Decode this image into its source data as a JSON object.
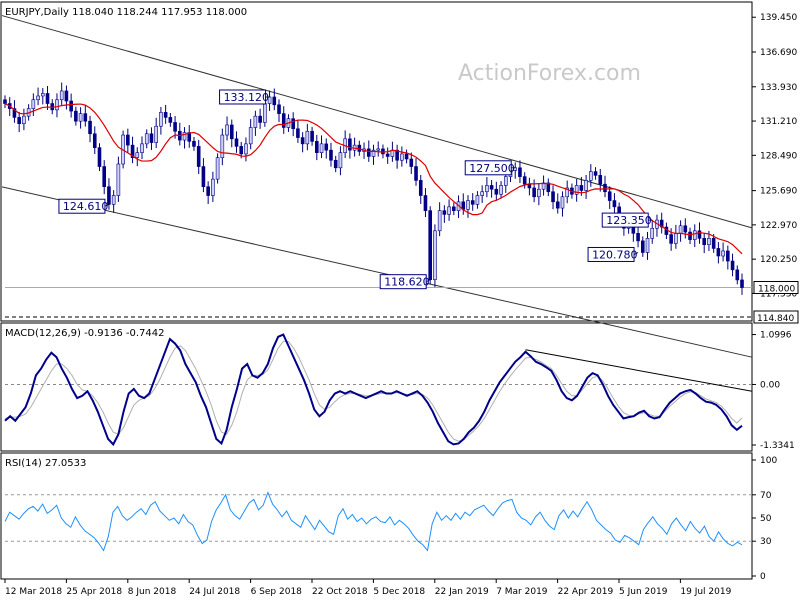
{
  "chart_data": {
    "type": "candlestick",
    "symbol_header": "EURJPY,Daily  118.040 118.244 117.953 118.000",
    "watermark": "ActionForex.com",
    "x_labels": [
      "12 Mar 2018",
      "25 Apr 2018",
      "8 Jun 2018",
      "24 Jul 2018",
      "6 Sep 2018",
      "22 Oct 2018",
      "5 Dec 2018",
      "22 Jan 2019",
      "7 Mar 2019",
      "22 Apr 2019",
      "5 Jun 2019",
      "19 Jul 2019"
    ],
    "price_panel": {
      "y_ticks": [
        "139.450",
        "136.690",
        "133.930",
        "131.210",
        "128.490",
        "125.690",
        "122.970",
        "120.250",
        "117.530"
      ],
      "y_range": [
        115.5,
        140.5
      ],
      "last_price": "118.000",
      "support_level": "114.840",
      "moving_average_color": "#e00000",
      "candle_up_color": "#d0d0ff",
      "candle_down_color": "#00008b",
      "closes": [
        132.6,
        132.2,
        131.5,
        131.0,
        131.6,
        132.2,
        132.9,
        133.2,
        133.4,
        132.6,
        132.1,
        132.9,
        133.6,
        132.8,
        132.0,
        131.2,
        131.8,
        131.2,
        130.2,
        129.1,
        127.6,
        126.0,
        124.6,
        125.3,
        127.8,
        130.1,
        129.3,
        128.3,
        128.7,
        129.4,
        130.2,
        129.5,
        130.8,
        131.9,
        131.5,
        131.1,
        130.4,
        129.7,
        130.3,
        129.6,
        129.2,
        127.6,
        126.0,
        125.3,
        126.6,
        128.3,
        130.1,
        130.9,
        129.8,
        129.2,
        128.6,
        129.4,
        130.7,
        131.6,
        131.1,
        132.6,
        133.12,
        132.5,
        131.8,
        130.7,
        131.4,
        130.6,
        129.9,
        129.4,
        130.4,
        129.6,
        128.7,
        129.4,
        128.9,
        128.1,
        127.5,
        128.7,
        129.8,
        128.9,
        129.3,
        128.8,
        129.0,
        128.4,
        128.9,
        129.0,
        128.6,
        128.4,
        128.9,
        128.1,
        128.6,
        128.2,
        127.6,
        126.5,
        125.3,
        124.1,
        118.62,
        122.5,
        124.1,
        123.8,
        124.4,
        124.1,
        124.8,
        124.2,
        124.9,
        124.6,
        125.3,
        125.6,
        126.1,
        125.8,
        125.4,
        126.1,
        126.8,
        127.3,
        127.5,
        126.8,
        126.2,
        125.9,
        125.2,
        125.8,
        126.3,
        125.6,
        124.8,
        124.3,
        125.2,
        125.9,
        125.4,
        126.1,
        125.7,
        126.5,
        127.2,
        126.9,
        126.2,
        125.6,
        124.9,
        124.4,
        123.3,
        122.7,
        123.2,
        122.3,
        121.7,
        120.78,
        121.9,
        122.7,
        123.35,
        122.8,
        122.2,
        121.5,
        122.3,
        122.9,
        122.4,
        121.8,
        122.5,
        121.9,
        121.4,
        121.9,
        121.1,
        120.5,
        120.9,
        120.1,
        119.4,
        118.6,
        118.0
      ],
      "annotations": [
        {
          "label": "133.120",
          "index": 56
        },
        {
          "label": "124.610",
          "index": 22
        },
        {
          "label": "127.500",
          "index": 108
        },
        {
          "label": "118.620",
          "index": 90
        },
        {
          "label": "123.350",
          "index": 137
        },
        {
          "label": "120.780",
          "index": 134
        }
      ]
    },
    "macd_panel": {
      "title": "MACD(12,26,9) -0.9136 -0.7442",
      "y_ticks": [
        "1.0996",
        "0.00",
        "-1.3341"
      ],
      "y_range": [
        -1.4,
        1.2
      ],
      "macd_color": "#00008b",
      "signal_color": "#b0b0b0",
      "macd": [
        -0.8,
        -0.7,
        -0.8,
        -0.65,
        -0.5,
        -0.2,
        0.2,
        0.35,
        0.55,
        0.7,
        0.6,
        0.35,
        0.15,
        -0.1,
        -0.3,
        -0.25,
        -0.15,
        -0.35,
        -0.6,
        -0.9,
        -1.2,
        -1.32,
        -1.1,
        -0.6,
        -0.2,
        -0.1,
        -0.25,
        -0.3,
        -0.2,
        0.1,
        0.4,
        0.7,
        1.0,
        0.9,
        0.75,
        0.45,
        0.25,
        0.05,
        -0.25,
        -0.5,
        -0.85,
        -1.2,
        -1.3,
        -1.0,
        -0.5,
        -0.1,
        0.35,
        0.45,
        0.2,
        0.15,
        0.25,
        0.45,
        0.8,
        1.05,
        1.1,
        0.85,
        0.6,
        0.35,
        0.1,
        -0.2,
        -0.55,
        -0.7,
        -0.6,
        -0.35,
        -0.2,
        -0.15,
        -0.2,
        -0.15,
        -0.2,
        -0.25,
        -0.3,
        -0.25,
        -0.2,
        -0.15,
        -0.2,
        -0.2,
        -0.15,
        -0.2,
        -0.25,
        -0.2,
        -0.15,
        -0.25,
        -0.4,
        -0.6,
        -0.85,
        -1.05,
        -1.25,
        -1.32,
        -1.3,
        -1.2,
        -1.05,
        -0.95,
        -0.8,
        -0.6,
        -0.35,
        -0.15,
        0.05,
        0.2,
        0.35,
        0.5,
        0.6,
        0.72,
        0.62,
        0.5,
        0.45,
        0.38,
        0.3,
        0.1,
        -0.15,
        -0.3,
        -0.35,
        -0.25,
        -0.05,
        0.15,
        0.25,
        0.2,
        0.0,
        -0.25,
        -0.45,
        -0.6,
        -0.75,
        -0.72,
        -0.7,
        -0.62,
        -0.58,
        -0.7,
        -0.75,
        -0.72,
        -0.55,
        -0.4,
        -0.3,
        -0.2,
        -0.15,
        -0.12,
        -0.2,
        -0.3,
        -0.38,
        -0.4,
        -0.45,
        -0.55,
        -0.7,
        -0.9,
        -1.0,
        -0.91
      ],
      "signal": [
        -0.75,
        -0.72,
        -0.72,
        -0.7,
        -0.65,
        -0.5,
        -0.3,
        -0.1,
        0.1,
        0.3,
        0.45,
        0.45,
        0.35,
        0.2,
        0.0,
        -0.12,
        -0.15,
        -0.25,
        -0.4,
        -0.6,
        -0.85,
        -1.05,
        -1.1,
        -0.95,
        -0.7,
        -0.45,
        -0.35,
        -0.3,
        -0.25,
        -0.1,
        0.1,
        0.35,
        0.6,
        0.8,
        0.85,
        0.75,
        0.55,
        0.35,
        0.1,
        -0.15,
        -0.45,
        -0.8,
        -1.05,
        -1.1,
        -0.9,
        -0.6,
        -0.2,
        0.1,
        0.2,
        0.2,
        0.22,
        0.32,
        0.55,
        0.8,
        0.95,
        0.95,
        0.8,
        0.6,
        0.35,
        0.1,
        -0.2,
        -0.45,
        -0.55,
        -0.5,
        -0.38,
        -0.28,
        -0.22,
        -0.2,
        -0.2,
        -0.22,
        -0.25,
        -0.25,
        -0.22,
        -0.2,
        -0.2,
        -0.2,
        -0.18,
        -0.2,
        -0.22,
        -0.22,
        -0.2,
        -0.22,
        -0.3,
        -0.45,
        -0.65,
        -0.85,
        -1.05,
        -1.2,
        -1.25,
        -1.22,
        -1.12,
        -1.02,
        -0.9,
        -0.75,
        -0.55,
        -0.35,
        -0.15,
        0.02,
        0.18,
        0.32,
        0.45,
        0.58,
        0.6,
        0.55,
        0.5,
        0.42,
        0.35,
        0.2,
        0.02,
        -0.15,
        -0.25,
        -0.25,
        -0.12,
        0.02,
        0.15,
        0.18,
        0.08,
        -0.1,
        -0.3,
        -0.48,
        -0.62,
        -0.68,
        -0.7,
        -0.65,
        -0.62,
        -0.66,
        -0.7,
        -0.7,
        -0.6,
        -0.48,
        -0.38,
        -0.28,
        -0.2,
        -0.16,
        -0.18,
        -0.25,
        -0.32,
        -0.36,
        -0.4,
        -0.48,
        -0.6,
        -0.75,
        -0.85,
        -0.74
      ],
      "trendline_label": ""
    },
    "rsi_panel": {
      "title": "RSI(14) 27.0533",
      "y_ticks": [
        "100",
        "70",
        "50",
        "30",
        "0"
      ],
      "y_range": [
        0,
        100
      ],
      "line_color": "#1e90ff",
      "values": [
        47,
        55,
        52,
        49,
        54,
        58,
        60,
        56,
        62,
        54,
        57,
        61,
        50,
        45,
        42,
        51,
        44,
        39,
        36,
        33,
        28,
        22,
        34,
        55,
        60,
        52,
        48,
        51,
        55,
        58,
        53,
        61,
        64,
        56,
        52,
        48,
        50,
        45,
        53,
        47,
        44,
        35,
        28,
        31,
        47,
        57,
        63,
        70,
        57,
        52,
        49,
        56,
        63,
        66,
        57,
        61,
        72,
        62,
        57,
        51,
        56,
        48,
        45,
        42,
        52,
        46,
        40,
        48,
        43,
        38,
        36,
        52,
        58,
        49,
        53,
        47,
        50,
        45,
        49,
        51,
        47,
        46,
        51,
        44,
        48,
        45,
        41,
        35,
        30,
        27,
        22,
        45,
        55,
        48,
        52,
        48,
        54,
        49,
        55,
        52,
        57,
        59,
        61,
        56,
        52,
        58,
        63,
        65,
        66,
        55,
        50,
        48,
        44,
        51,
        55,
        48,
        43,
        40,
        52,
        57,
        50,
        56,
        51,
        58,
        64,
        57,
        48,
        44,
        40,
        37,
        31,
        29,
        35,
        33,
        30,
        27,
        40,
        46,
        51,
        45,
        41,
        36,
        45,
        50,
        44,
        39,
        47,
        41,
        37,
        43,
        34,
        30,
        38,
        32,
        28,
        26,
        29,
        27
      ]
    }
  }
}
